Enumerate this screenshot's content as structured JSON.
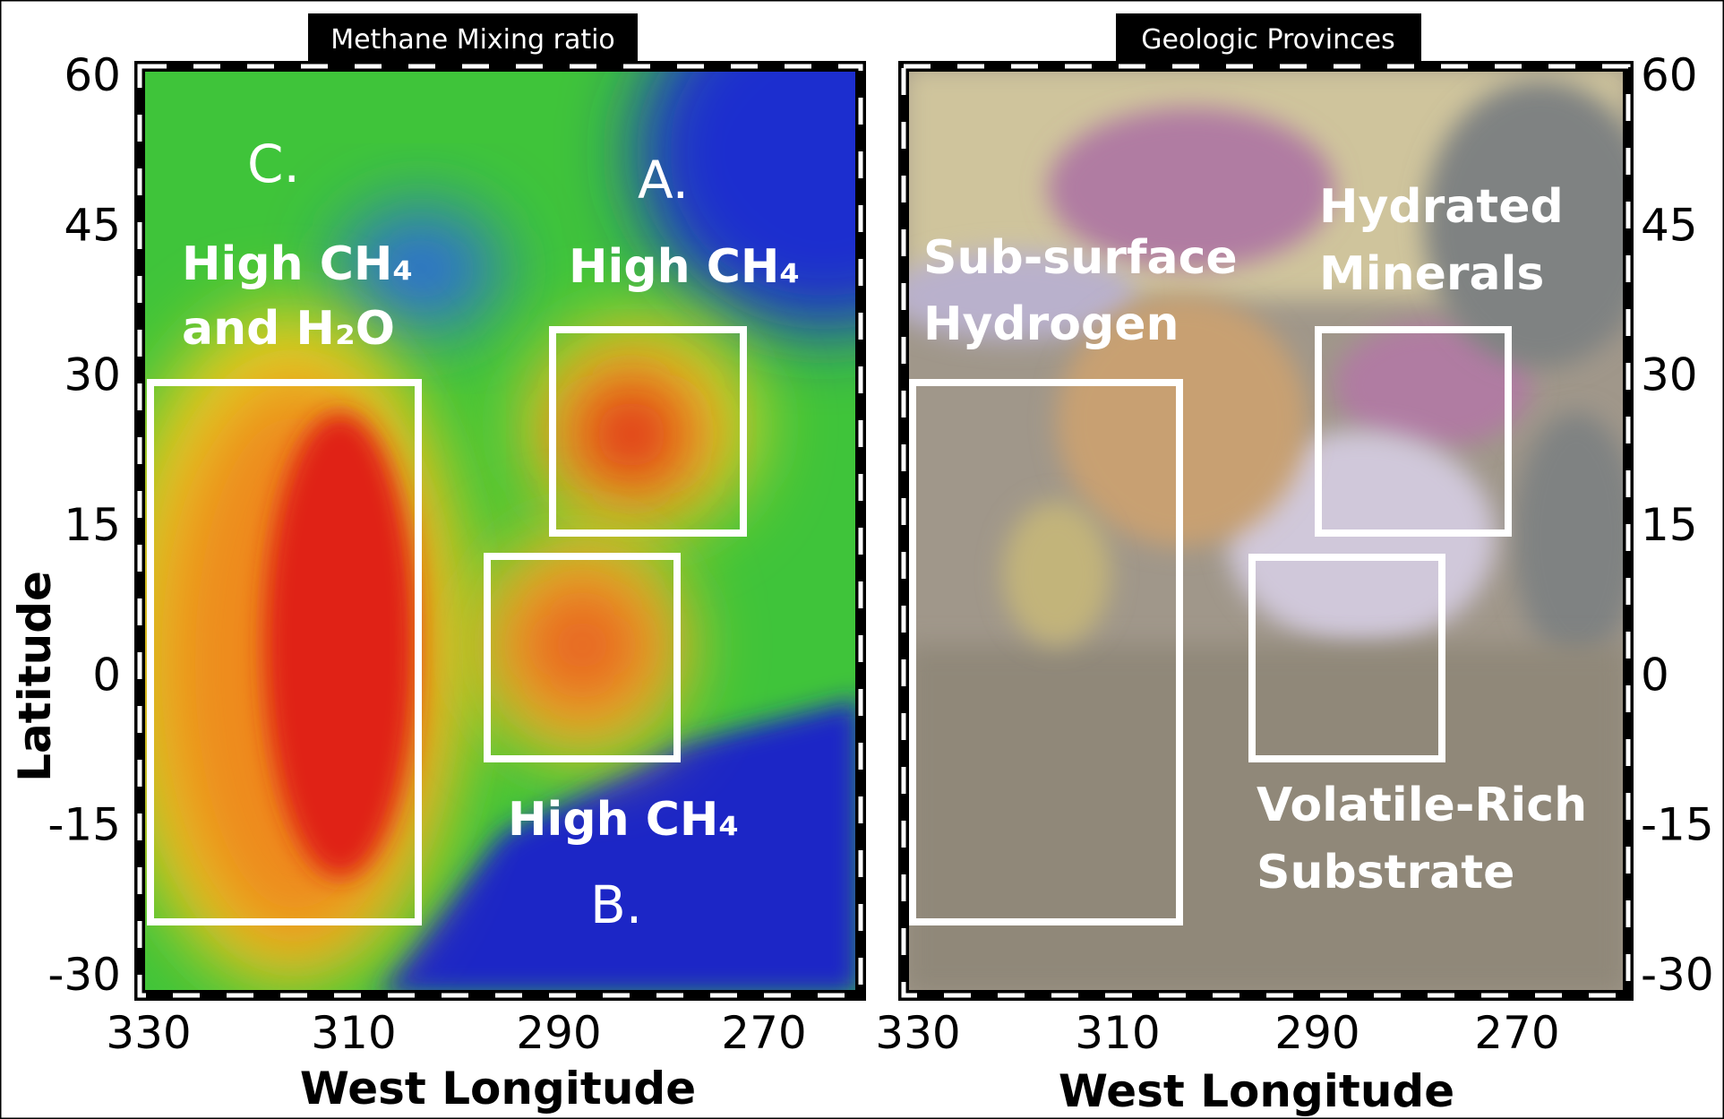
{
  "y_label": "Latitude",
  "panels": [
    {
      "title": "Methane Mixing ratio",
      "x_label": "West Longitude",
      "xticks": [
        330,
        310,
        290,
        270
      ],
      "yticks": [
        60,
        45,
        30,
        15,
        0,
        -15,
        -30
      ],
      "labels": [
        "C.",
        "High CH₄",
        "and H₂O",
        "A.",
        "High CH₄",
        "High CH₄",
        "B."
      ]
    },
    {
      "title": "Geologic Provinces",
      "x_label": "West Longitude",
      "xticks": [
        330,
        310,
        290,
        270
      ],
      "yticks": [
        60,
        45,
        30,
        15,
        0,
        -15,
        -30
      ],
      "labels": [
        "Sub-surface",
        "Hydrogen",
        "Hydrated",
        "Minerals",
        "Volatile-Rich",
        "Substrate"
      ]
    }
  ]
}
